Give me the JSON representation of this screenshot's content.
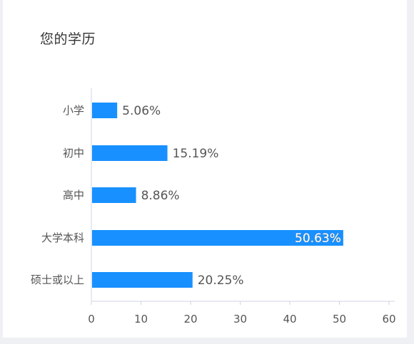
{
  "title": "您的学历",
  "chart_data": {
    "type": "bar",
    "orientation": "horizontal",
    "title": "您的学历",
    "categories": [
      "小学",
      "初中",
      "高中",
      "大学本科",
      "硕士或以上"
    ],
    "values": [
      5.06,
      15.19,
      8.86,
      50.63,
      20.25
    ],
    "labels": [
      "5.06%",
      "15.19%",
      "8.86%",
      "50.63%",
      "20.25%"
    ],
    "xlim": [
      0,
      60
    ],
    "ticks": [
      0,
      10,
      20,
      30,
      40,
      50,
      60
    ],
    "grid": false,
    "bar_color": "#1890ff"
  }
}
